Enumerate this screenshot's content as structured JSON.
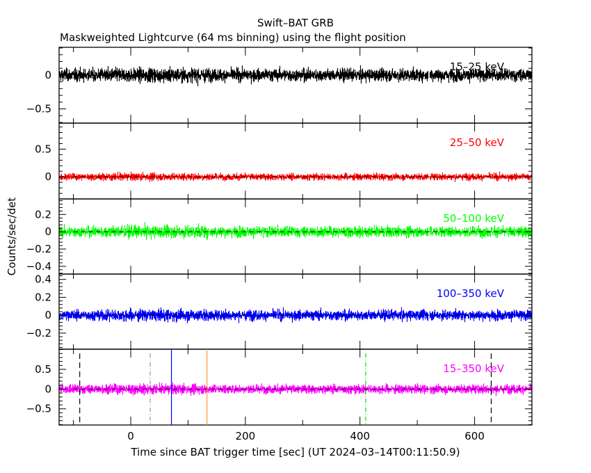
{
  "chart_data": {
    "type": "line",
    "title": "Swift–BAT GRB",
    "subtitle": "Maskweighted Lightcurve (64 ms binning) using the flight position",
    "xlabel": "Time since BAT trigger time [sec] (UT 2024–03–14T00:11:50.9)",
    "ylabel": "Counts/sec/det",
    "xlim": [
      -125,
      700
    ],
    "xticks": [
      0,
      200,
      400,
      600
    ],
    "xtick_labels": [
      "0",
      "200",
      "400",
      "600"
    ],
    "data_gap_sec": 520,
    "panels": [
      {
        "band": "15–25 keV",
        "color": "#000000",
        "ylim": [
          -0.71,
          0.41
        ],
        "yticks": [
          0,
          -0.5
        ],
        "ytick_labels": [
          "0",
          "−0.5"
        ],
        "noise_sigma": 0.045,
        "dashed_zero": false
      },
      {
        "band": "25–50 keV",
        "color": "#ff0000",
        "ylim": [
          -0.4,
          0.97
        ],
        "yticks": [
          0.5,
          0
        ],
        "ytick_labels": [
          "0.5",
          "0"
        ],
        "noise_sigma": 0.03,
        "dashed_zero": true
      },
      {
        "band": "50–100 keV",
        "color": "#00ff00",
        "ylim": [
          -0.49,
          0.38
        ],
        "yticks": [
          0.2,
          0,
          -0.2,
          -0.4
        ],
        "ytick_labels": [
          "0.2",
          "0",
          "−0.2",
          "−0.4"
        ],
        "noise_sigma": 0.03,
        "dashed_zero": true
      },
      {
        "band": "100–350 keV",
        "color": "#0000ff",
        "ylim": [
          -0.38,
          0.46
        ],
        "yticks": [
          0.4,
          0.2,
          0,
          -0.2
        ],
        "ytick_labels": [
          "0.4",
          "0.2",
          "0",
          "−0.2"
        ],
        "noise_sigma": 0.028,
        "dashed_zero": true
      },
      {
        "band": "15–350 keV",
        "color": "#ff00ff",
        "ylim": [
          -0.91,
          1.01
        ],
        "yticks": [
          0.5,
          0,
          -0.5
        ],
        "ytick_labels": [
          "0.5",
          "0",
          "−0.5"
        ],
        "noise_sigma": 0.055,
        "dashed_zero": true
      }
    ],
    "markers": [
      {
        "t": -89,
        "color": "#000000",
        "style": "dashed"
      },
      {
        "t": 34,
        "color": "#999999",
        "style": "dashdot"
      },
      {
        "t": 71,
        "color": "#0000ff",
        "style": "solid"
      },
      {
        "t": 133,
        "color": "#ff9933",
        "style": "solid"
      },
      {
        "t": 410,
        "color": "#00dd00",
        "style": "dashdot"
      },
      {
        "t": 629,
        "color": "#000000",
        "style": "dashed"
      }
    ]
  }
}
